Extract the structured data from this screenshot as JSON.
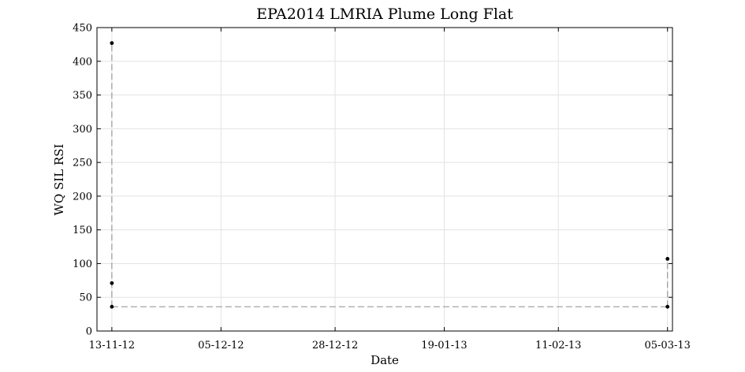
{
  "chart_data": {
    "type": "scatter",
    "title": "EPA2014 LMRIA Plume Long Flat",
    "xlabel": "Date",
    "ylabel": "WQ SIL RSI",
    "x_ticks": [
      "13-11-12",
      "05-12-12",
      "28-12-12",
      "19-01-13",
      "11-02-13",
      "05-03-13"
    ],
    "xlim": [
      "2012-11-10",
      "2013-03-06"
    ],
    "y_ticks": [
      0,
      50,
      100,
      150,
      200,
      250,
      300,
      350,
      400,
      450
    ],
    "ylim": [
      0,
      450
    ],
    "grid": true,
    "series": [
      {
        "marker": "dot",
        "points": [
          {
            "x": "2012-11-13",
            "y": 427
          },
          {
            "x": "2012-11-13",
            "y": 71
          },
          {
            "x": "2012-11-13",
            "y": 36
          },
          {
            "x": "2013-03-05",
            "y": 107
          },
          {
            "x": "2013-03-05",
            "y": 36
          }
        ]
      }
    ],
    "reference_lines": [
      {
        "style": "dashed",
        "color": "#999999",
        "x_from": "2012-11-13",
        "x_to": "2013-03-05",
        "y": 36
      },
      {
        "style": "dashed",
        "color": "#999999",
        "x": "2012-11-13",
        "y_from": 36,
        "y_to": 427
      },
      {
        "style": "dashed",
        "color": "#999999",
        "x": "2013-03-05",
        "y_from": 36,
        "y_to": 107
      }
    ],
    "colors": {
      "marker": "#000000",
      "grid": "#e3e3e3",
      "axes": "#000000",
      "reference": "#999999"
    }
  }
}
